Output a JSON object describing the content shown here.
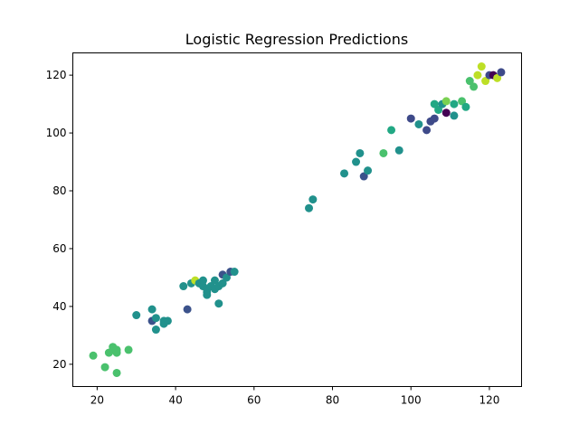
{
  "chart_data": {
    "type": "scatter",
    "title": "Logistic Regression Predictions",
    "xlabel": "",
    "ylabel": "",
    "xlim": [
      13.8,
      128.2
    ],
    "ylim": [
      12.3,
      127.7
    ],
    "xticks": [
      20,
      40,
      60,
      80,
      100,
      120
    ],
    "yticks": [
      20,
      40,
      60,
      80,
      100,
      120
    ],
    "grid": false,
    "legend": "none",
    "points": [
      {
        "x": 19,
        "y": 23,
        "color": "#4ac16d"
      },
      {
        "x": 22,
        "y": 19,
        "color": "#4ac16d"
      },
      {
        "x": 23,
        "y": 24,
        "color": "#4ac16d"
      },
      {
        "x": 24,
        "y": 26,
        "color": "#4ac16d"
      },
      {
        "x": 24,
        "y": 25,
        "color": "#4ac16d"
      },
      {
        "x": 25,
        "y": 24,
        "color": "#4ac16d"
      },
      {
        "x": 25,
        "y": 25,
        "color": "#4ac16d"
      },
      {
        "x": 25,
        "y": 17,
        "color": "#4ac16d"
      },
      {
        "x": 28,
        "y": 25,
        "color": "#4ac16d"
      },
      {
        "x": 30,
        "y": 37,
        "color": "#21918c"
      },
      {
        "x": 34,
        "y": 39,
        "color": "#21918c"
      },
      {
        "x": 34,
        "y": 35,
        "color": "#3b528b"
      },
      {
        "x": 35,
        "y": 36,
        "color": "#21918c"
      },
      {
        "x": 35,
        "y": 32,
        "color": "#21918c"
      },
      {
        "x": 37,
        "y": 35,
        "color": "#21918c"
      },
      {
        "x": 37,
        "y": 34,
        "color": "#21918c"
      },
      {
        "x": 38,
        "y": 35,
        "color": "#21918c"
      },
      {
        "x": 42,
        "y": 47,
        "color": "#21918c"
      },
      {
        "x": 43,
        "y": 39,
        "color": "#3b528b"
      },
      {
        "x": 44,
        "y": 48,
        "color": "#21918c"
      },
      {
        "x": 45,
        "y": 49,
        "color": "#bddf26"
      },
      {
        "x": 46,
        "y": 48,
        "color": "#21918c"
      },
      {
        "x": 47,
        "y": 47,
        "color": "#21918c"
      },
      {
        "x": 47,
        "y": 49,
        "color": "#21918c"
      },
      {
        "x": 48,
        "y": 46,
        "color": "#21918c"
      },
      {
        "x": 48,
        "y": 44,
        "color": "#21918c"
      },
      {
        "x": 48,
        "y": 45,
        "color": "#21918c"
      },
      {
        "x": 49,
        "y": 47,
        "color": "#21918c"
      },
      {
        "x": 50,
        "y": 49,
        "color": "#21918c"
      },
      {
        "x": 50,
        "y": 46,
        "color": "#21918c"
      },
      {
        "x": 51,
        "y": 41,
        "color": "#21918c"
      },
      {
        "x": 51,
        "y": 47,
        "color": "#21918c"
      },
      {
        "x": 52,
        "y": 48,
        "color": "#21918c"
      },
      {
        "x": 52,
        "y": 51,
        "color": "#3b528b"
      },
      {
        "x": 53,
        "y": 50,
        "color": "#21918c"
      },
      {
        "x": 54,
        "y": 52,
        "color": "#3b528b"
      },
      {
        "x": 55,
        "y": 52,
        "color": "#21918c"
      },
      {
        "x": 74,
        "y": 74,
        "color": "#21918c"
      },
      {
        "x": 75,
        "y": 77,
        "color": "#21918c"
      },
      {
        "x": 83,
        "y": 86,
        "color": "#21918c"
      },
      {
        "x": 86,
        "y": 90,
        "color": "#21918c"
      },
      {
        "x": 87,
        "y": 93,
        "color": "#21918c"
      },
      {
        "x": 88,
        "y": 85,
        "color": "#3b528b"
      },
      {
        "x": 89,
        "y": 87,
        "color": "#21918c"
      },
      {
        "x": 93,
        "y": 93,
        "color": "#4ac16d"
      },
      {
        "x": 95,
        "y": 101,
        "color": "#22a884"
      },
      {
        "x": 97,
        "y": 94,
        "color": "#21918c"
      },
      {
        "x": 100,
        "y": 105,
        "color": "#3e4a89"
      },
      {
        "x": 102,
        "y": 103,
        "color": "#21918c"
      },
      {
        "x": 104,
        "y": 101,
        "color": "#3e4a89"
      },
      {
        "x": 105,
        "y": 104,
        "color": "#3e4a89"
      },
      {
        "x": 106,
        "y": 105,
        "color": "#3e4a89"
      },
      {
        "x": 106,
        "y": 110,
        "color": "#22a884"
      },
      {
        "x": 107,
        "y": 108,
        "color": "#22a884"
      },
      {
        "x": 108,
        "y": 110,
        "color": "#21918c"
      },
      {
        "x": 109,
        "y": 107,
        "color": "#440154"
      },
      {
        "x": 109,
        "y": 111,
        "color": "#7ad151"
      },
      {
        "x": 111,
        "y": 110,
        "color": "#22a884"
      },
      {
        "x": 111,
        "y": 106,
        "color": "#21918c"
      },
      {
        "x": 113,
        "y": 111,
        "color": "#4ac16d"
      },
      {
        "x": 114,
        "y": 109,
        "color": "#22a884"
      },
      {
        "x": 115,
        "y": 118,
        "color": "#4ac16d"
      },
      {
        "x": 116,
        "y": 116,
        "color": "#4ac16d"
      },
      {
        "x": 117,
        "y": 120,
        "color": "#bddf26"
      },
      {
        "x": 118,
        "y": 123,
        "color": "#bddf26"
      },
      {
        "x": 119,
        "y": 118,
        "color": "#bddf26"
      },
      {
        "x": 120,
        "y": 120,
        "color": "#3e4a89"
      },
      {
        "x": 121,
        "y": 120,
        "color": "#440154"
      },
      {
        "x": 122,
        "y": 119,
        "color": "#bddf26"
      },
      {
        "x": 123,
        "y": 121,
        "color": "#3e4a89"
      }
    ]
  }
}
